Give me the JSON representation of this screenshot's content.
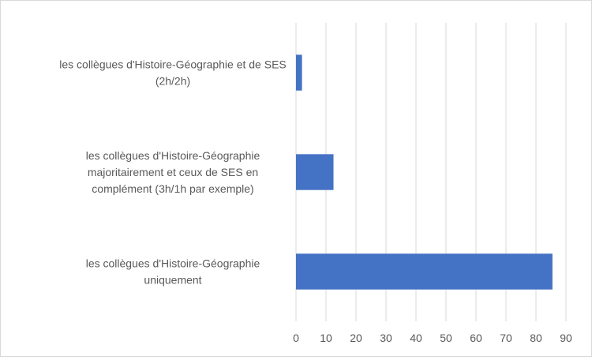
{
  "chart_data": {
    "type": "bar",
    "orientation": "horizontal",
    "categories": [
      [
        "les collègues d'Histoire-Géographie et de SES",
        "(2h/2h)"
      ],
      [
        "les collègues d'Histoire-Géographie",
        "majoritairement et ceux de SES en",
        "complément (3h/1h par exemple)"
      ],
      [
        "les collègues d'Histoire-Géographie",
        "uniquement"
      ]
    ],
    "values": [
      2,
      12.5,
      85.5
    ],
    "xlim": [
      0,
      90
    ],
    "xticks": [
      0,
      10,
      20,
      30,
      40,
      50,
      60,
      70,
      80,
      90
    ],
    "title": "",
    "xlabel": "",
    "ylabel": "",
    "grid": "vertical",
    "legend": "none",
    "bar_color": "#4472c4",
    "grid_color": "#d9d9d9"
  }
}
